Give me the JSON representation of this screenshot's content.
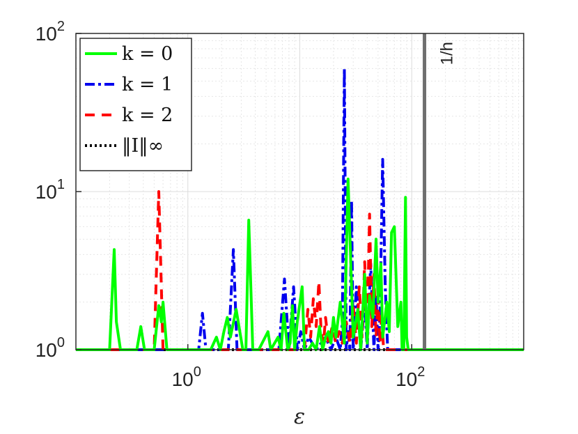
{
  "chart_data": {
    "type": "line",
    "xscale": "log",
    "yscale": "log",
    "xlabel": "ε",
    "ylabel": "",
    "xlim": [
      0.1,
      1000
    ],
    "ylim": [
      1,
      100
    ],
    "grid": true,
    "legend_position": "top-left",
    "x_ticks": [
      {
        "base": "10",
        "exp": "0",
        "value": 1
      },
      {
        "base": "10",
        "exp": "2",
        "value": 100
      }
    ],
    "y_ticks": [
      {
        "base": "10",
        "exp": "0",
        "value": 1
      },
      {
        "base": "10",
        "exp": "1",
        "value": 10
      },
      {
        "base": "10",
        "exp": "2",
        "value": 100
      }
    ],
    "vline": {
      "x": 130,
      "label": "1/h",
      "color": "#6e6e6e"
    },
    "series": [
      {
        "name": "k = 0",
        "color": "#00ff00",
        "dash": "solid",
        "x": [
          0.1,
          0.2,
          0.22,
          0.23,
          0.25,
          0.35,
          0.38,
          0.41,
          0.5,
          0.55,
          0.58,
          0.6,
          0.65,
          1.6,
          1.8,
          1.95,
          2.1,
          2.25,
          2.4,
          2.7,
          3.1,
          3.3,
          3.5,
          3.8,
          4.3,
          5.2,
          5.5,
          6.4,
          6.8,
          7.2,
          7.8,
          8.2,
          8.6,
          9.0,
          9.5,
          10.5,
          11.0,
          12.0,
          13.0,
          14.0,
          15.0,
          16.0,
          17.0,
          18.0,
          19.0,
          20.0,
          21.0,
          23.0,
          25.0,
          27.0,
          30.0,
          33.0,
          35.0,
          38.0,
          40.0,
          42.0,
          45.0,
          48.0,
          50.0,
          53.0,
          55.0,
          60.0,
          63.0,
          66.0,
          70.0,
          75.0,
          80.0,
          82.0,
          85.0,
          88.0,
          90.0,
          93.0,
          96.0,
          100.0,
          1000
        ],
        "y": [
          1,
          1,
          4.3,
          1.5,
          1,
          1,
          1.4,
          1,
          1,
          1.9,
          1.5,
          2.0,
          1,
          1,
          1.2,
          1,
          1.3,
          1.6,
          1.2,
          1.8,
          1,
          1,
          6.6,
          1,
          1,
          1.3,
          1,
          1.2,
          1,
          1.7,
          1,
          1.1,
          1.9,
          1,
          1.5,
          2.5,
          1,
          1,
          1.1,
          1,
          1.4,
          1,
          1.2,
          1.3,
          1.1,
          1.6,
          1.2,
          2.0,
          1.1,
          12.0,
          1.2,
          1.8,
          1.0,
          3.0,
          1.1,
          2.2,
          1.6,
          5.0,
          2.0,
          3.5,
          1.2,
          2.0,
          1.3,
          5.5,
          6.0,
          1.4,
          2.0,
          1.0,
          1.0,
          9.2,
          1.2,
          1.0,
          1.0,
          1.0,
          1.0
        ]
      },
      {
        "name": "k = 1",
        "color": "#0000ee",
        "dash": "dashdot",
        "x": [
          0.1,
          1.25,
          1.35,
          1.45,
          2.3,
          2.55,
          2.75,
          6.5,
          7.3,
          8.0,
          8.8,
          9.5,
          10.2,
          11.0,
          12.0,
          14.0,
          17.0,
          19.0,
          21.0,
          23.0,
          24.0,
          25.0,
          26.0,
          27.0,
          28.0,
          29.0,
          30.0,
          32.0,
          35.0,
          38.0,
          40.0,
          43.0,
          46.0,
          48.0,
          50.0,
          52.0,
          55.0,
          58.0,
          61.0,
          64.0,
          1000
        ],
        "y": [
          1,
          1,
          1.7,
          1,
          1,
          4.3,
          1,
          1,
          2.8,
          1,
          2.5,
          1,
          1.3,
          1,
          1.2,
          1,
          1.2,
          1,
          1.2,
          1,
          1.5,
          60,
          1,
          1.3,
          1,
          8.8,
          1,
          2.5,
          1,
          2.0,
          1,
          3.5,
          1,
          2.2,
          1,
          1.6,
          16,
          2.5,
          1,
          1,
          1
        ]
      },
      {
        "name": "k = 2",
        "color": "#ff0000",
        "dash": "dash",
        "x": [
          0.1,
          0.5,
          0.55,
          0.6,
          1000,
          11.0,
          11.8,
          12.5,
          13.2,
          14.0,
          14.8,
          15.5,
          16.3,
          17.0,
          18.0,
          19.5,
          21.0,
          22.5,
          24.0,
          26.0,
          28.0,
          30.0,
          32.0,
          34.0,
          36.0,
          38.0,
          40.0,
          42.0,
          44.0,
          46.0,
          48.0,
          50.0,
          52.0,
          54.0,
          56.0,
          60.0
        ],
        "y": [
          1,
          1,
          10,
          1,
          1,
          1,
          1.8,
          1.2,
          2.1,
          1.4,
          2.7,
          1.3,
          1.1,
          1.6,
          1.1,
          1.4,
          1.1,
          1.3,
          1.1,
          1.5,
          1.1,
          1.9,
          1.1,
          2.5,
          1.2,
          3.6,
          1.3,
          7.2,
          1.4,
          3.0,
          1.2,
          2.1,
          1.1,
          1.7,
          1.0,
          1.0
        ]
      },
      {
        "name": "‖I‖∞",
        "color": "#000000",
        "dash": "dot",
        "x": [
          0.1,
          1000
        ],
        "y": [
          1,
          1
        ]
      }
    ]
  }
}
